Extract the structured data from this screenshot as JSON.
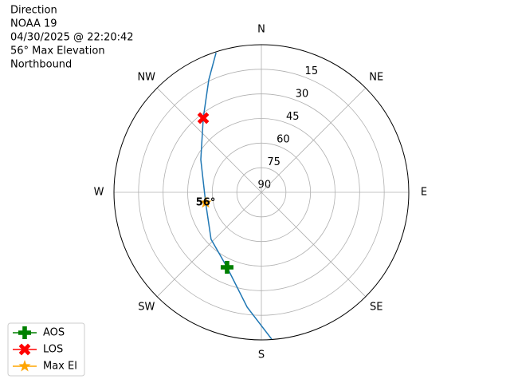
{
  "chart_data": {
    "type": "polar",
    "title_lines": [
      "Direction",
      "NOAA 19",
      "04/30/2025 @ 22:20:42",
      "56° Max Elevation",
      "Northbound"
    ],
    "theta_direction": "clockwise",
    "theta_zero": "N",
    "thetaticks": [
      {
        "value": 0,
        "label": "N"
      },
      {
        "value": 45,
        "label": "NE"
      },
      {
        "value": 90,
        "label": "E"
      },
      {
        "value": 135,
        "label": "SE"
      },
      {
        "value": 180,
        "label": "S"
      },
      {
        "value": 225,
        "label": "SW"
      },
      {
        "value": 270,
        "label": "W"
      },
      {
        "value": 315,
        "label": "NW"
      }
    ],
    "rlim": [
      90,
      0
    ],
    "rticks": [
      15,
      30,
      45,
      60,
      75,
      90
    ],
    "grid": true,
    "series": [
      {
        "color": "#1f77b4",
        "marker": "none",
        "x": [
          176,
          187.1,
          204.6,
          227,
          259.5,
          298.3,
          321.9,
          334.9,
          342
        ],
        "values": [
          0.3,
          19.5,
          39.7,
          48,
          55.4,
          48,
          32.5,
          14.3,
          0.5
        ]
      },
      {
        "name": "AOS",
        "color": "#008000",
        "marker": "plus",
        "x": [
          204.6
        ],
        "values": [
          39.7
        ]
      },
      {
        "name": "LOS",
        "color": "#ff0000",
        "marker": "x",
        "x": [
          321.9
        ],
        "values": [
          32.5
        ]
      },
      {
        "name": "Max El",
        "color": "#ffa500",
        "marker": "star",
        "x": [
          259.5
        ],
        "values": [
          55.4
        ]
      }
    ],
    "annotations": [
      {
        "text": "56°",
        "x": 259.5,
        "y": 55.4
      }
    ],
    "legend": "lower left"
  }
}
